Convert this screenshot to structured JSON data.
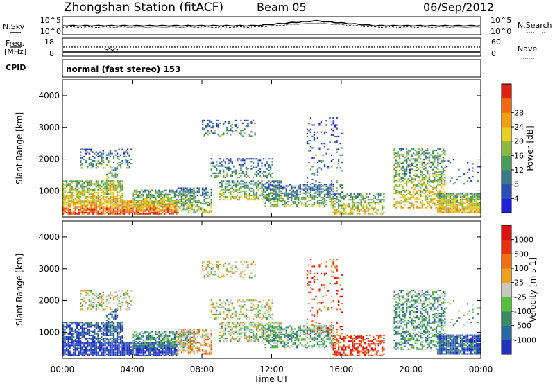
{
  "header": {
    "station": "Zhongshan Station (fitACF)",
    "beam": "Beam 05",
    "date": "06/Sep/2012"
  },
  "top_panels": {
    "nsky": {
      "label": "N.Sky",
      "ticks": [
        "10^5",
        "10^0"
      ]
    },
    "nsearch": {
      "label": "N.Search",
      "ticks": [
        "10^5",
        "10^0"
      ]
    },
    "freq": {
      "label_line1": "Freq.",
      "label_line2": "[MHz]",
      "ticks": [
        "18",
        "8"
      ]
    },
    "nave": {
      "label": "Nave",
      "ticks": [
        "60",
        "0"
      ]
    },
    "cpid": {
      "label": "CPID",
      "text": "normal (fast stereo) 153"
    }
  },
  "x_axis": {
    "label": "Time UT",
    "ticks": [
      "00:00",
      "04:00",
      "08:00",
      "12:00",
      "16:00",
      "20:00",
      "00:00"
    ]
  },
  "chart_data": [
    {
      "type": "heatmap",
      "name": "power",
      "ylabel": "Slant Range [km]",
      "yticks": [
        1000,
        2000,
        3000,
        4000
      ],
      "ylim": [
        180,
        4500
      ],
      "xlim_hours": [
        0,
        24
      ],
      "colorbar": {
        "label": "Power [dB]",
        "ticks": [
          "4",
          "8",
          "12",
          "16",
          "20",
          "24",
          "28"
        ],
        "colors": [
          "#1f1fe0",
          "#2b4fb8",
          "#3a7a88",
          "#4a9a5a",
          "#8ab840",
          "#e8d020",
          "#f0a010",
          "#ef6a10",
          "#e02010"
        ]
      }
    },
    {
      "type": "heatmap",
      "name": "velocity",
      "ylabel": "Slant Range [km]",
      "yticks": [
        1000,
        2000,
        3000,
        4000
      ],
      "ylim": [
        180,
        4500
      ],
      "xlim_hours": [
        0,
        24
      ],
      "colorbar": {
        "label": "Velocity [m s-1]",
        "ticks": [
          "1000",
          "500",
          "100",
          "25",
          "-25",
          "-100",
          "-500",
          "-1000"
        ],
        "colors": [
          "#2030c0",
          "#2a6aa0",
          "#3a8a6a",
          "#55c040",
          "#c8c8c0",
          "#f0a020",
          "#f07010",
          "#e83010",
          "#e01010"
        ]
      }
    }
  ]
}
